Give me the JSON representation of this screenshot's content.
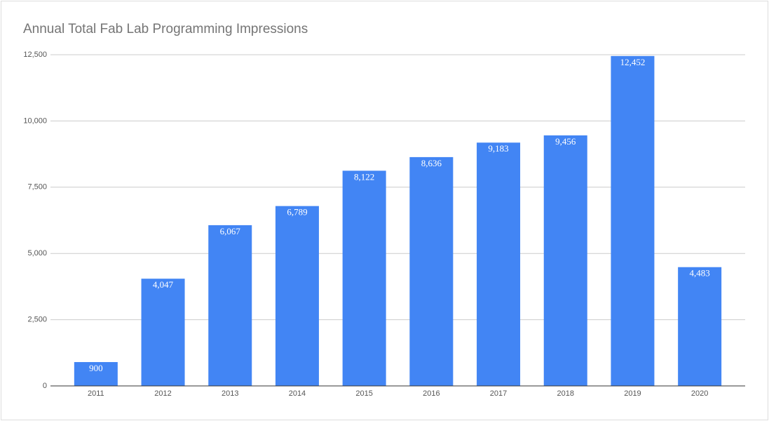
{
  "chart_data": {
    "type": "bar",
    "title": "Annual Total Fab Lab Programming Impressions",
    "categories": [
      "2011",
      "2012",
      "2013",
      "2014",
      "2015",
      "2016",
      "2017",
      "2018",
      "2019",
      "2020"
    ],
    "values": [
      900,
      4047,
      6067,
      6789,
      8122,
      8636,
      9183,
      9456,
      12452,
      4483
    ],
    "value_labels": [
      "900",
      "4,047",
      "6,067",
      "6,789",
      "8,122",
      "8,636",
      "9,183",
      "9,456",
      "12,452",
      "4,483"
    ],
    "color": "#4285f4",
    "ylim": [
      0,
      12500
    ],
    "yticks": [
      0,
      {
        "value": 2500,
        "label": "2,500"
      },
      {
        "value": 5000,
        "label": "5,000"
      },
      {
        "value": 7500,
        "label": "7,500"
      },
      {
        "value": 10000,
        "label": "10,000"
      },
      {
        "value": 12500,
        "label": "12,500"
      }
    ],
    "grid": true
  }
}
